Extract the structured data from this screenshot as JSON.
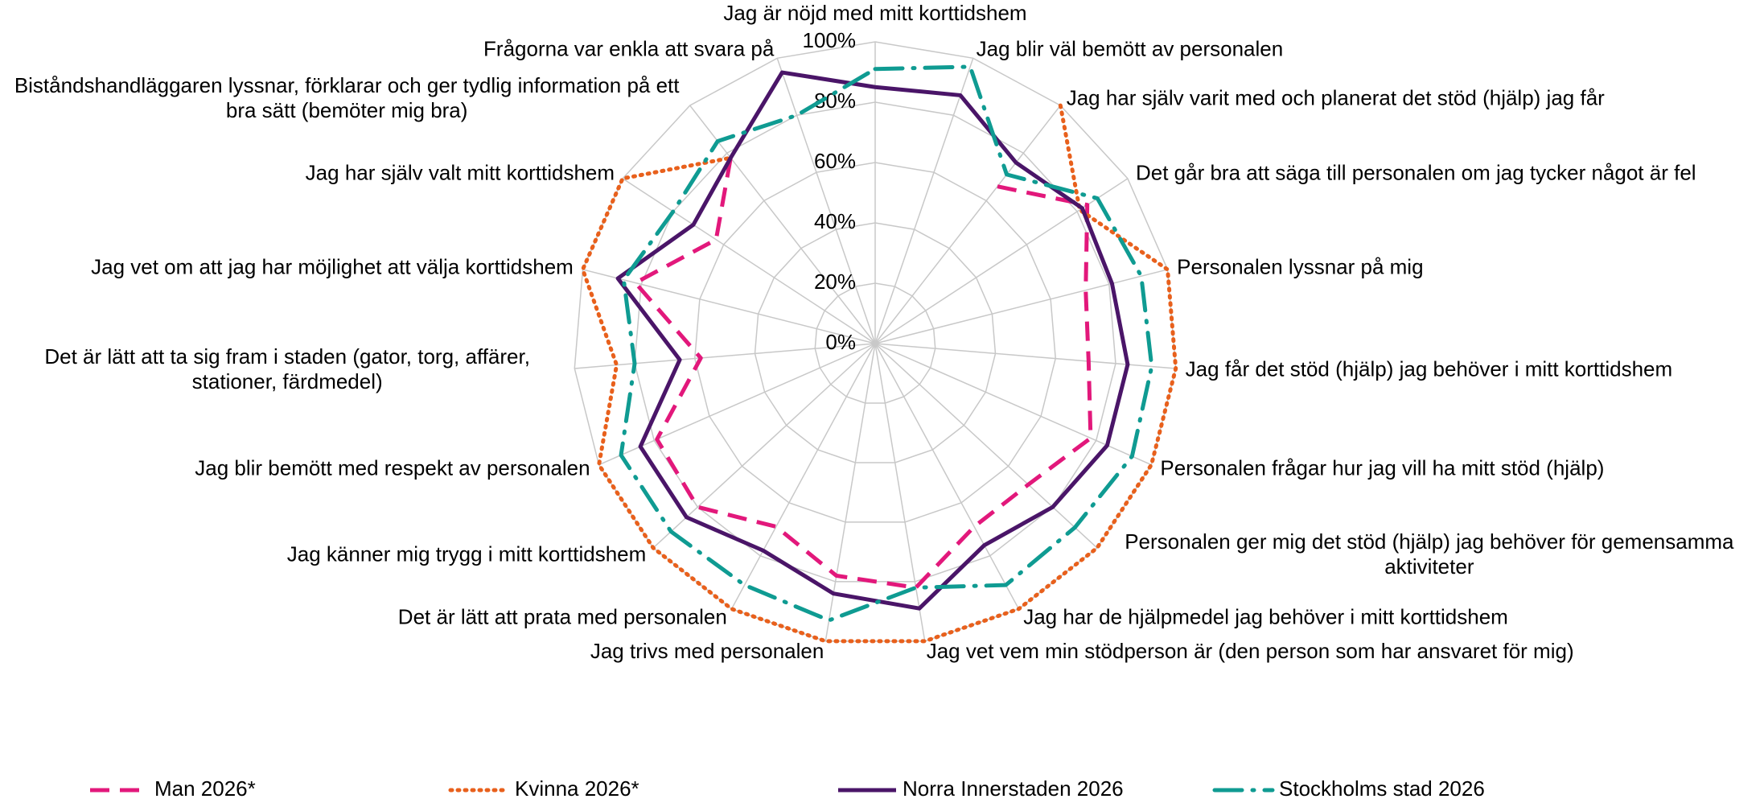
{
  "chart_data": {
    "type": "radar",
    "categories": [
      "Jag är nöjd med mitt korttidshem",
      "Jag blir väl bemött av personalen",
      "Jag har själv varit med och planerat det stöd (hjälp) jag får",
      "Det går bra att säga till personalen om jag tycker något är fel",
      "Personalen lyssnar på mig",
      "Jag får det stöd (hjälp) jag behöver i mitt korttidshem",
      "Personalen frågar hur jag vill ha mitt stöd (hjälp)",
      "Personalen ger mig det stöd (hjälp) jag behöver för gemensamma aktiviteter",
      "Jag har de hjälpmedel jag behöver i mitt korttidshem",
      "Jag vet vem min stödperson är (den person som har ansvaret för mig)",
      "Jag trivs med personalen",
      "Det är lätt att prata med personalen",
      "Jag känner mig trygg i mitt korttidshem",
      "Jag blir bemött med respekt av personalen",
      "Det är lätt att ta sig fram i staden (gator, torg, affärer, stationer, färdmedel)",
      "Jag vet om att jag har möjlighet att välja korttidshem",
      "Jag har själv valt mitt korttidshem",
      "Biståndshandläggaren lyssnar, förklarar och ger tydlig information på ett bra sätt (bemöter mig bra)",
      "Frågorna var enkla att svara på"
    ],
    "series": [
      {
        "name": "Man 2026*",
        "color": "#e2187b",
        "line_style": "dashed",
        "values": [
          null,
          null,
          66,
          84,
          72,
          71,
          78,
          69,
          69,
          82,
          78,
          69,
          80,
          79,
          58,
          82,
          63,
          78,
          null
        ]
      },
      {
        "name": "Kvinna 2026*",
        "color": "#e8601c",
        "line_style": "dotted",
        "values": [
          null,
          null,
          100,
          81,
          100,
          100,
          100,
          100,
          100,
          100,
          100,
          100,
          100,
          100,
          86,
          100,
          100,
          78,
          null
        ]
      },
      {
        "name": "Norra Innerstaden 2026",
        "color": "#4a1568",
        "line_style": "solid",
        "values": [
          85,
          87,
          76,
          82,
          81,
          84,
          84,
          80,
          76,
          89,
          84,
          78,
          85,
          85,
          65,
          88,
          72,
          78,
          95
        ]
      },
      {
        "name": "Stockholms stad 2026",
        "color": "#0f9b92",
        "line_style": "dashdot",
        "values": [
          91,
          97,
          71,
          88,
          91,
          92,
          93,
          90,
          91,
          82,
          93,
          91,
          92,
          92,
          80,
          86,
          80,
          85,
          80
        ]
      }
    ],
    "ylim": [
      0,
      100
    ],
    "yticks": [
      {
        "value": 0,
        "label": "0%"
      },
      {
        "value": 20,
        "label": "20%"
      },
      {
        "value": 40,
        "label": "40%"
      },
      {
        "value": 60,
        "label": "60%"
      },
      {
        "value": 80,
        "label": "80%"
      },
      {
        "value": 100,
        "label": "100%"
      }
    ],
    "grid": true,
    "legend": "bottom"
  }
}
